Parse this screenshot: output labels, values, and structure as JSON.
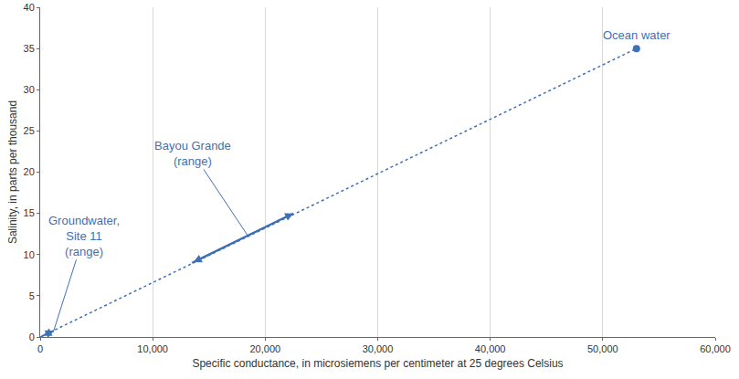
{
  "chart_data": {
    "type": "line",
    "x_label": "Specific conductance, in microsiemens per centimeter at 25 degrees Celsius",
    "y_label": "Salinity, in parts per thousand",
    "color": "#3f70b5",
    "grid": "x",
    "xlim": [
      0,
      60000
    ],
    "xticks": [
      0,
      {
        "value": 10000,
        "label": "10,000"
      },
      {
        "value": 20000,
        "label": "20,000"
      },
      {
        "value": 30000,
        "label": "30,000"
      },
      {
        "value": 40000,
        "label": "40,000"
      },
      {
        "value": 50000,
        "label": "50,000"
      },
      {
        "value": 60000,
        "label": "60,000"
      }
    ],
    "ylim": [
      0,
      40
    ],
    "yticks": [
      0,
      5,
      10,
      15,
      20,
      25,
      30,
      35,
      40
    ],
    "series": [
      {
        "type": "line",
        "line_style": "dot",
        "x": [
          0,
          53000
        ],
        "values": [
          0,
          35
        ]
      },
      {
        "name": "Ocean water",
        "type": "scatter",
        "marker": "circle",
        "x": [
          53000
        ],
        "values": [
          35
        ]
      },
      {
        "name": "Bayou Grande\n(range)",
        "type": "line",
        "line_style": "solid",
        "marker": "arrow",
        "x": [
          13500,
          22500
        ],
        "values": [
          9,
          15
        ]
      },
      {
        "name": "Groundwater,\nSite 11\n(range)",
        "type": "line",
        "line_style": "solid",
        "marker": "arrow",
        "x": [
          150,
          1200
        ],
        "values": [
          0.1,
          0.75
        ]
      }
    ]
  }
}
